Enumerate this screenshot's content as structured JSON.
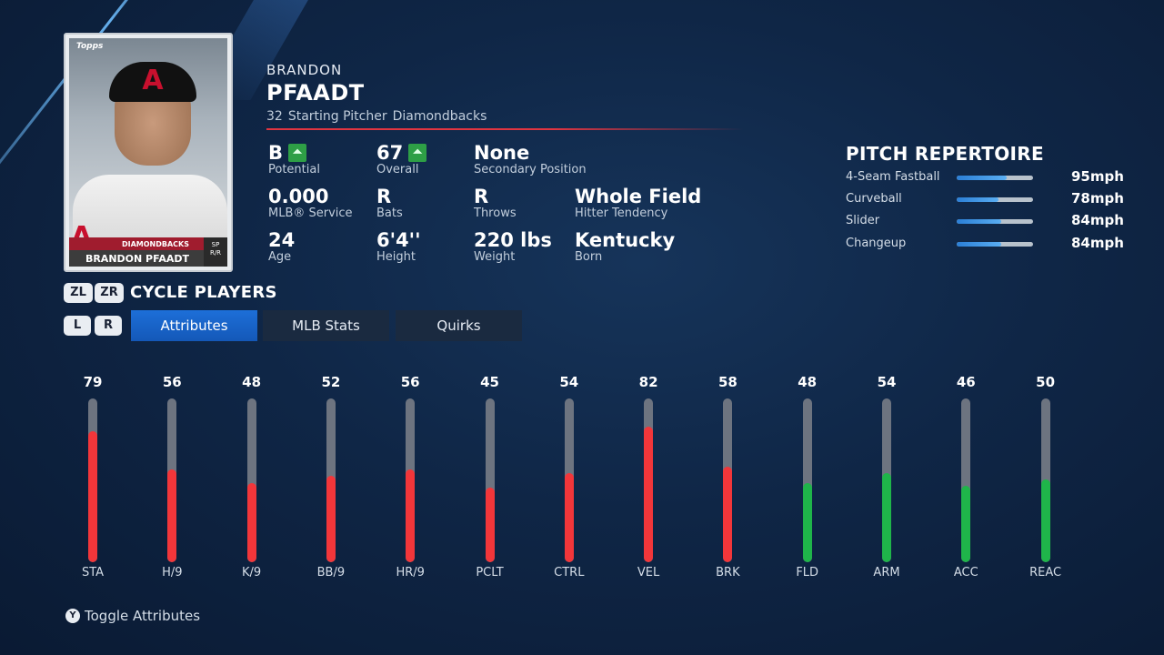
{
  "card": {
    "brand": "Topps",
    "team_bar": "DIAMONDBACKS",
    "name_bar": "BRANDON PFAADT",
    "position": "SP",
    "bats_throws": "R/R",
    "cap_letter": "A"
  },
  "player": {
    "first_name": "BRANDON",
    "last_name": "PFAADT",
    "number": "32",
    "role": "Starting Pitcher",
    "team": "Diamondbacks"
  },
  "info": {
    "potential": {
      "value": "B",
      "label": "Potential",
      "trend": "up"
    },
    "overall": {
      "value": "67",
      "label": "Overall",
      "trend": "up"
    },
    "secondary_position": {
      "value": "None",
      "label": "Secondary Position"
    },
    "service": {
      "value": "0.000",
      "label": "MLB® Service"
    },
    "bats": {
      "value": "R",
      "label": "Bats"
    },
    "throws": {
      "value": "R",
      "label": "Throws"
    },
    "hitter_tendency": {
      "value": "Whole Field",
      "label": "Hitter Tendency"
    },
    "age": {
      "value": "24",
      "label": "Age"
    },
    "height": {
      "value": "6'4''",
      "label": "Height"
    },
    "weight": {
      "value": "220 lbs",
      "label": "Weight"
    },
    "born": {
      "value": "Kentucky",
      "label": "Born"
    }
  },
  "repertoire": {
    "title": "PITCH REPERTOIRE",
    "pitches": [
      {
        "name": "4-Seam Fastball",
        "speed": "95mph",
        "level": 0.65
      },
      {
        "name": "Curveball",
        "speed": "78mph",
        "level": 0.55
      },
      {
        "name": "Slider",
        "speed": "84mph",
        "level": 0.58
      },
      {
        "name": "Changeup",
        "speed": "84mph",
        "level": 0.58
      }
    ]
  },
  "cycle": {
    "left_button": "ZL",
    "right_button": "ZR",
    "label": "CYCLE PLAYERS",
    "tab_left_button": "L",
    "tab_right_button": "R"
  },
  "tabs": [
    {
      "label": "Attributes",
      "active": true
    },
    {
      "label": "MLB Stats",
      "active": false
    },
    {
      "label": "Quirks",
      "active": false
    }
  ],
  "attributes": [
    {
      "abbr": "STA",
      "value": 79,
      "color": "red"
    },
    {
      "abbr": "H/9",
      "value": 56,
      "color": "red"
    },
    {
      "abbr": "K/9",
      "value": 48,
      "color": "red"
    },
    {
      "abbr": "BB/9",
      "value": 52,
      "color": "red"
    },
    {
      "abbr": "HR/9",
      "value": 56,
      "color": "red"
    },
    {
      "abbr": "PCLT",
      "value": 45,
      "color": "red"
    },
    {
      "abbr": "CTRL",
      "value": 54,
      "color": "red"
    },
    {
      "abbr": "VEL",
      "value": 82,
      "color": "red"
    },
    {
      "abbr": "BRK",
      "value": 58,
      "color": "red"
    },
    {
      "abbr": "FLD",
      "value": 48,
      "color": "green"
    },
    {
      "abbr": "ARM",
      "value": 54,
      "color": "green"
    },
    {
      "abbr": "ACC",
      "value": 46,
      "color": "green"
    },
    {
      "abbr": "REAC",
      "value": 50,
      "color": "green"
    }
  ],
  "colors": {
    "red": "#f2363a",
    "green": "#1fb54a",
    "accent_blue": "#1d6fd8",
    "rule_red": "#e03541"
  },
  "footer": {
    "button": "Y",
    "label": "Toggle Attributes"
  }
}
